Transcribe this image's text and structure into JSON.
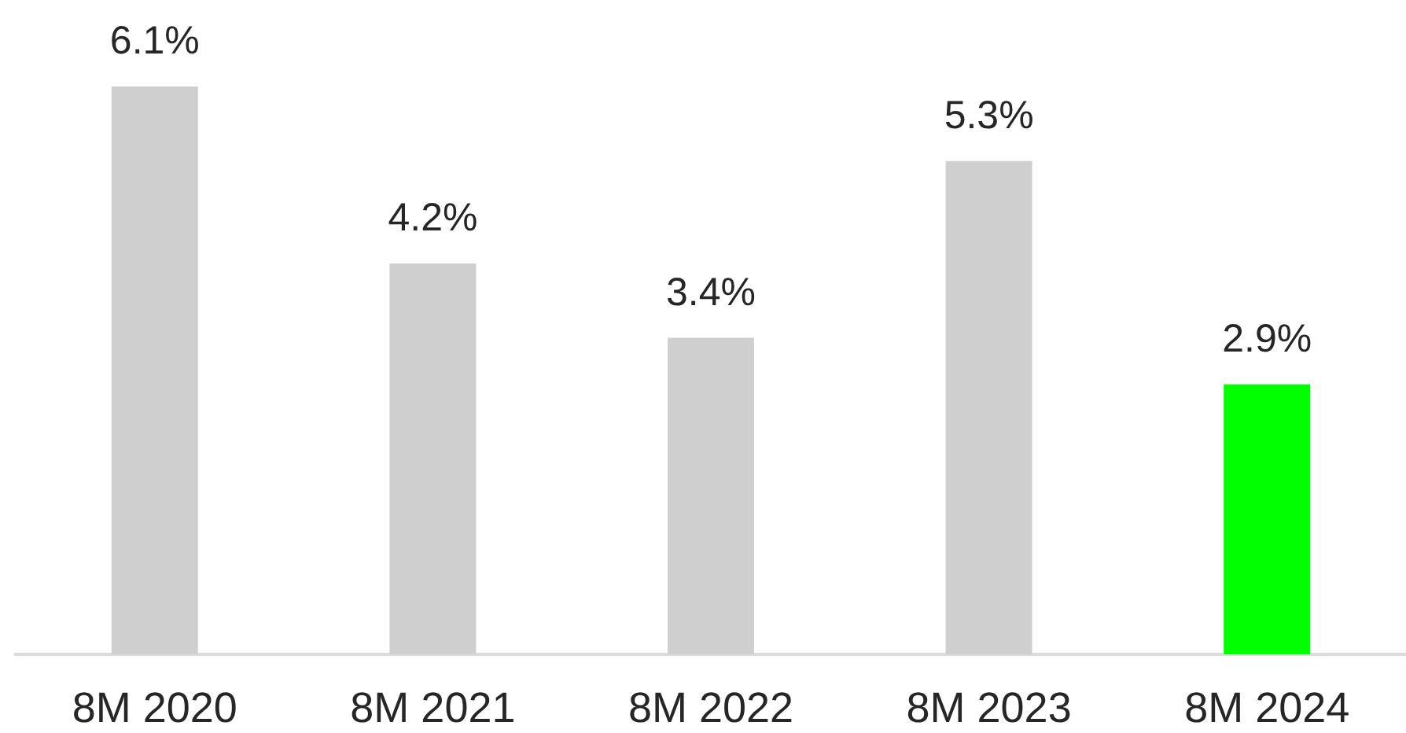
{
  "chart_data": {
    "type": "bar",
    "categories": [
      "8M 2020",
      "8M 2021",
      "8M 2022",
      "8M 2023",
      "8M 2024"
    ],
    "values": [
      6.1,
      4.2,
      3.4,
      5.3,
      2.9
    ],
    "colors": [
      "#cfcfcf",
      "#cfcfcf",
      "#cfcfcf",
      "#cfcfcf",
      "#00ff00"
    ],
    "value_labels": [
      "6.1%",
      "4.2%",
      "3.4%",
      "5.3%",
      "2.9%"
    ],
    "grid": false,
    "legend": false
  }
}
